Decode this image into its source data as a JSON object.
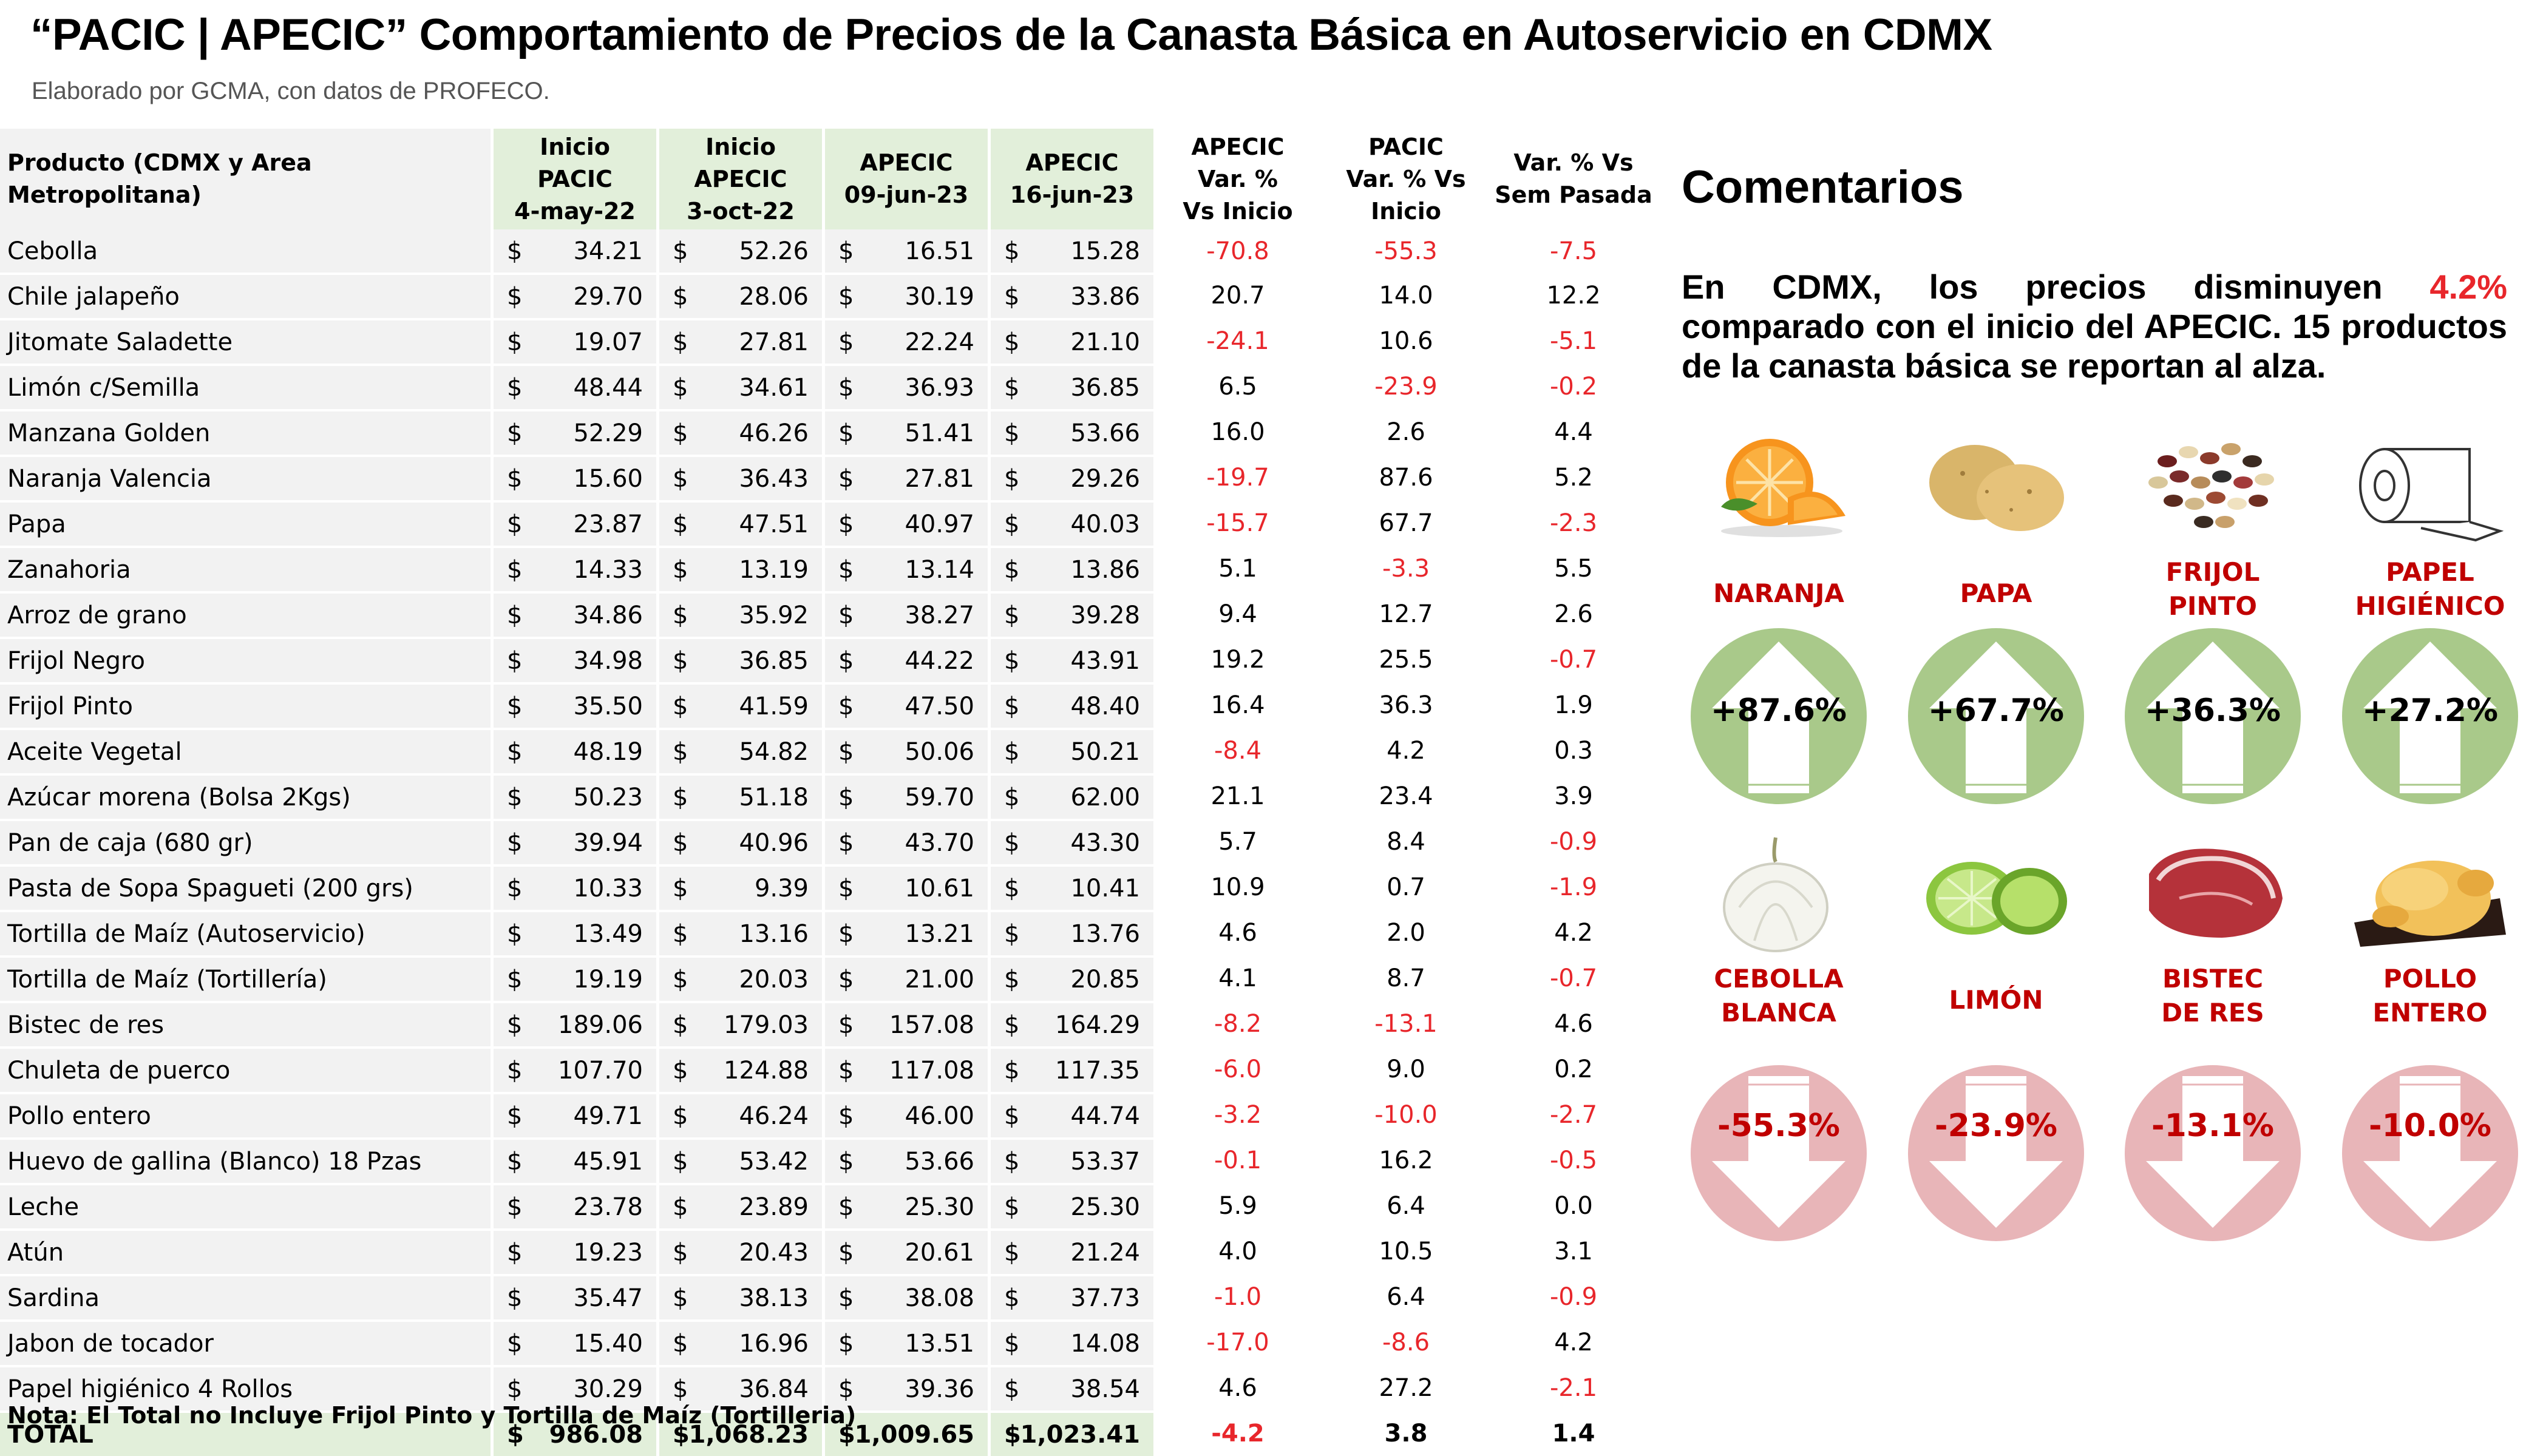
{
  "title": "“PACIC | APECIC” Comportamiento de Precios de la Canasta Básica en Autoservicio en CDMX",
  "subtitle": "Elaborado por GCMA, con datos de PROFECO.",
  "table": {
    "headers": [
      "Producto (CDMX y Area Metropolitana)",
      "Inicio PACIC 4-may-22",
      "Inicio APECIC 3-oct-22",
      "APECIC 09-jun-23",
      "APECIC 16-jun-23",
      "APECIC Var. % Vs Inicio",
      "PACIC Var. % Vs Inicio",
      "Var. % Vs Sem Pasada"
    ],
    "header_lines": [
      [
        "Producto (CDMX y Area Metropolitana)"
      ],
      [
        "Inicio",
        "PACIC",
        "4-may-22"
      ],
      [
        "Inicio",
        "APECIC",
        "3-oct-22"
      ],
      [
        "APECIC",
        "09-jun-23"
      ],
      [
        "APECIC",
        "16-jun-23"
      ],
      [
        "APECIC",
        "Var. %",
        "Vs  Inicio"
      ],
      [
        "PACIC",
        "Var. % Vs",
        "Inicio"
      ],
      [
        "Var. % Vs",
        "Sem Pasada"
      ]
    ],
    "currency_symbol": "$",
    "rows": [
      [
        "Cebolla",
        "34.21",
        "52.26",
        "16.51",
        "15.28",
        "-70.8",
        "-55.3",
        "-7.5"
      ],
      [
        "Chile jalapeño",
        "29.70",
        "28.06",
        "30.19",
        "33.86",
        "20.7",
        "14.0",
        "12.2"
      ],
      [
        "Jitomate Saladette",
        "19.07",
        "27.81",
        "22.24",
        "21.10",
        "-24.1",
        "10.6",
        "-5.1"
      ],
      [
        "Limón c/Semilla",
        "48.44",
        "34.61",
        "36.93",
        "36.85",
        "6.5",
        "-23.9",
        "-0.2"
      ],
      [
        "Manzana Golden",
        "52.29",
        "46.26",
        "51.41",
        "53.66",
        "16.0",
        "2.6",
        "4.4"
      ],
      [
        "Naranja Valencia",
        "15.60",
        "36.43",
        "27.81",
        "29.26",
        "-19.7",
        "87.6",
        "5.2"
      ],
      [
        "Papa",
        "23.87",
        "47.51",
        "40.97",
        "40.03",
        "-15.7",
        "67.7",
        "-2.3"
      ],
      [
        "Zanahoria",
        "14.33",
        "13.19",
        "13.14",
        "13.86",
        "5.1",
        "-3.3",
        "5.5"
      ],
      [
        "Arroz de grano",
        "34.86",
        "35.92",
        "38.27",
        "39.28",
        "9.4",
        "12.7",
        "2.6"
      ],
      [
        "Frijol Negro",
        "34.98",
        "36.85",
        "44.22",
        "43.91",
        "19.2",
        "25.5",
        "-0.7"
      ],
      [
        "Frijol Pinto",
        "35.50",
        "41.59",
        "47.50",
        "48.40",
        "16.4",
        "36.3",
        "1.9"
      ],
      [
        "Aceite Vegetal",
        "48.19",
        "54.82",
        "50.06",
        "50.21",
        "-8.4",
        "4.2",
        "0.3"
      ],
      [
        "Azúcar morena (Bolsa 2Kgs)",
        "50.23",
        "51.18",
        "59.70",
        "62.00",
        "21.1",
        "23.4",
        "3.9"
      ],
      [
        "Pan de caja (680 gr)",
        "39.94",
        "40.96",
        "43.70",
        "43.30",
        "5.7",
        "8.4",
        "-0.9"
      ],
      [
        "Pasta de Sopa Spagueti (200 grs)",
        "10.33",
        "9.39",
        "10.61",
        "10.41",
        "10.9",
        "0.7",
        "-1.9"
      ],
      [
        "Tortilla de Maíz (Autoservicio)",
        "13.49",
        "13.16",
        "13.21",
        "13.76",
        "4.6",
        "2.0",
        "4.2"
      ],
      [
        "Tortilla de Maíz (Tortillería)",
        "19.19",
        "20.03",
        "21.00",
        "20.85",
        "4.1",
        "8.7",
        "-0.7"
      ],
      [
        "Bistec de res",
        "189.06",
        "179.03",
        "157.08",
        "164.29",
        "-8.2",
        "-13.1",
        "4.6"
      ],
      [
        "Chuleta de puerco",
        "107.70",
        "124.88",
        "117.08",
        "117.35",
        "-6.0",
        "9.0",
        "0.2"
      ],
      [
        "Pollo entero",
        "49.71",
        "46.24",
        "46.00",
        "44.74",
        "-3.2",
        "-10.0",
        "-2.7"
      ],
      [
        "Huevo de gallina (Blanco) 18 Pzas",
        "45.91",
        "53.42",
        "53.66",
        "53.37",
        "-0.1",
        "16.2",
        "-0.5"
      ],
      [
        "Leche",
        "23.78",
        "23.89",
        "25.30",
        "25.30",
        "5.9",
        "6.4",
        "0.0"
      ],
      [
        "Atún",
        "19.23",
        "20.43",
        "20.61",
        "21.24",
        "4.0",
        "10.5",
        "3.1"
      ],
      [
        "Sardina",
        "35.47",
        "38.13",
        "38.08",
        "37.73",
        "-1.0",
        "6.4",
        "-0.9"
      ],
      [
        "Jabon de tocador",
        "15.40",
        "16.96",
        "13.51",
        "14.08",
        "-17.0",
        "-8.6",
        "4.2"
      ],
      [
        "Papel higiénico 4 Rollos",
        "30.29",
        "36.84",
        "39.36",
        "38.54",
        "4.6",
        "27.2",
        "-2.1"
      ]
    ],
    "total": [
      "TOTAL",
      "986.08",
      "1,068.23",
      "1,009.65",
      "1,023.41",
      "-4.2",
      "3.8",
      "1.4"
    ],
    "colors": {
      "header_green": "#e2efda",
      "row_gray": "#f2f2f2",
      "negative_red": "#e8262b"
    }
  },
  "note": "Nota: El Total no Incluye Frijol Pinto y Tortilla de Maíz (Tortilleria)",
  "comments": {
    "title": "Comentarios",
    "text_before": "En CDMX, los precios disminuyen ",
    "highlight": "4.2%",
    "text_after": " comparado con el inicio del APECIC. 15 productos de la canasta básica se reportan al alza."
  },
  "increases": [
    {
      "label_lines": [
        "NARANJA"
      ],
      "value": "+87.6%",
      "icon": "orange-icon"
    },
    {
      "label_lines": [
        "PAPA"
      ],
      "value": "+67.7%",
      "icon": "potato-icon"
    },
    {
      "label_lines": [
        "FRIJOL",
        "PINTO"
      ],
      "value": "+36.3%",
      "icon": "beans-icon"
    },
    {
      "label_lines": [
        "PAPEL",
        "HIGIÉNICO"
      ],
      "value": "+27.2%",
      "icon": "toilet-paper-icon"
    }
  ],
  "decreases": [
    {
      "label_lines": [
        "CEBOLLA",
        "BLANCA"
      ],
      "value": "-55.3%",
      "icon": "onion-icon"
    },
    {
      "label_lines": [
        "LIMÓN"
      ],
      "value": "-23.9%",
      "icon": "lime-icon"
    },
    {
      "label_lines": [
        "BISTEC",
        "DE RES"
      ],
      "value": "-13.1%",
      "icon": "steak-icon"
    },
    {
      "label_lines": [
        "POLLO",
        "ENTERO"
      ],
      "value": "-10.0%",
      "icon": "chicken-icon"
    }
  ],
  "indicator_colors": {
    "up_circle": "#a9c98a",
    "down_circle": "#e8b5b8",
    "label_red": "#c00000"
  }
}
